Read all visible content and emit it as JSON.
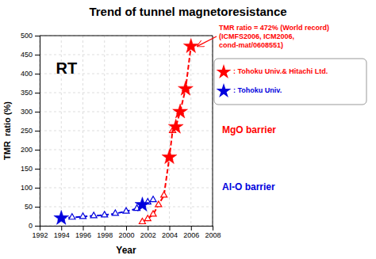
{
  "chart_data": {
    "type": "line",
    "title": "Trend of tunnel magnetoresistance",
    "x_label": "Year",
    "y_label": "TMR  ratio (%)",
    "xlim": [
      1992,
      2008
    ],
    "ylim": [
      0,
      500
    ],
    "xticks": [
      1992,
      1994,
      1996,
      1998,
      2000,
      2002,
      2004,
      2006,
      2008
    ],
    "yticks": [
      0,
      50,
      100,
      150,
      200,
      250,
      300,
      350,
      400,
      450,
      500
    ],
    "grid": true,
    "legend": "right",
    "series": [
      {
        "name": "Al-O barrier",
        "type": "line",
        "color": "#0000dd",
        "line_style": "dashed",
        "marker": "triangle",
        "x": [
          1994,
          1995,
          1996,
          1997,
          1998,
          1999,
          2000,
          2001,
          2001.5,
          2002,
          2002.5
        ],
        "values": [
          20,
          22,
          24,
          26,
          28,
          32,
          38,
          45,
          55,
          62,
          68
        ]
      },
      {
        "name": "MgO barrier",
        "type": "line",
        "color": "#ff0000",
        "line_style": "dashed",
        "marker": "triangle",
        "x": [
          2001.5,
          2002.0,
          2002.5,
          2003.0,
          2003.5,
          2004.0,
          2004.3,
          2004.6,
          2005.0,
          2005.5,
          2006.0
        ],
        "values": [
          10,
          18,
          30,
          55,
          80,
          180,
          250,
          260,
          300,
          360,
          472
        ]
      },
      {
        "name": ": Tohoku Univ.& Hitachi Ltd.",
        "type": "scatter",
        "color": "#ff0000",
        "marker": "star",
        "x": [
          2004.0,
          2004.6,
          2005.0,
          2005.5,
          2006.0
        ],
        "values": [
          180,
          260,
          300,
          360,
          472
        ]
      },
      {
        "name": ": Tohoku Univ.",
        "type": "scatter",
        "color": "#0000dd",
        "marker": "star",
        "x": [
          1994,
          2001.5
        ],
        "values": [
          20,
          55
        ]
      }
    ],
    "annotations": [
      {
        "text": "RT",
        "x": 1993.5,
        "y": 430
      },
      {
        "text": [
          "TMR ratio = 472% (World record)",
          "(ICMFS2006, ICM2006,",
          "cond-mat/0608551)"
        ],
        "x": 2006.0,
        "y": 472
      }
    ]
  }
}
